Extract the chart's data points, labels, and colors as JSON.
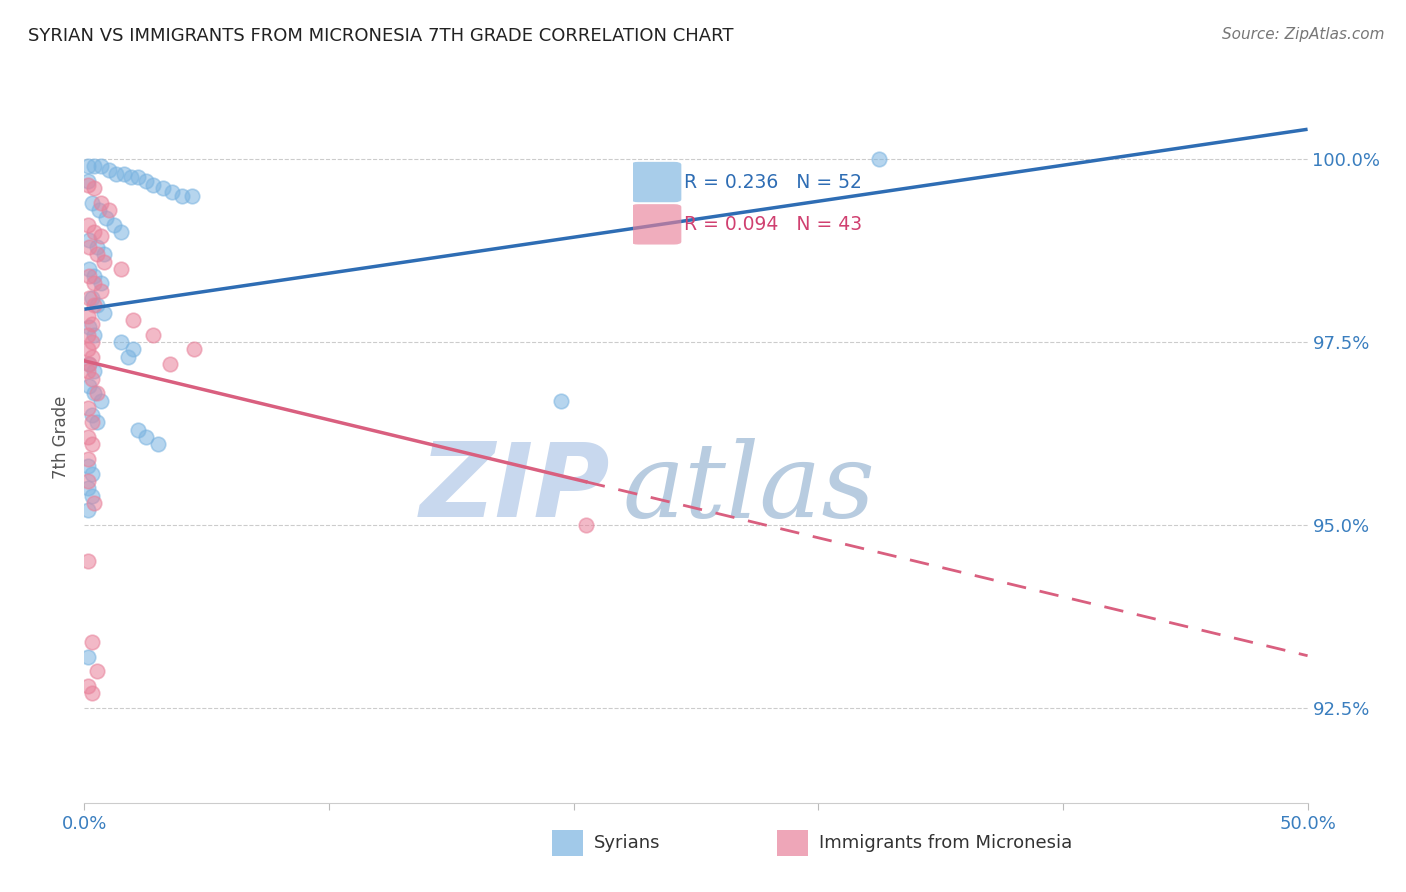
{
  "title": "SYRIAN VS IMMIGRANTS FROM MICRONESIA 7TH GRADE CORRELATION CHART",
  "source": "Source: ZipAtlas.com",
  "ylabel": "7th Grade",
  "ytick_labels": [
    "92.5%",
    "95.0%",
    "97.5%",
    "100.0%"
  ],
  "ytick_values": [
    92.5,
    95.0,
    97.5,
    100.0
  ],
  "xmin": 0.0,
  "xmax": 50.0,
  "ymin": 91.2,
  "ymax": 101.2,
  "legend_blue_r": "R = 0.236",
  "legend_blue_n": "N = 52",
  "legend_pink_r": "R = 0.094",
  "legend_pink_n": "N = 43",
  "blue_label": "Syrians",
  "pink_label": "Immigrants from Micronesia",
  "blue_color": "#7ab3e0",
  "pink_color": "#e8819a",
  "blue_line_color": "#2e6db4",
  "pink_line_color": "#d95f7f",
  "blue_scatter": [
    [
      0.15,
      99.9
    ],
    [
      0.4,
      99.9
    ],
    [
      0.7,
      99.9
    ],
    [
      1.0,
      99.85
    ],
    [
      1.3,
      99.8
    ],
    [
      1.6,
      99.8
    ],
    [
      1.9,
      99.75
    ],
    [
      2.2,
      99.75
    ],
    [
      2.5,
      99.7
    ],
    [
      2.8,
      99.65
    ],
    [
      3.2,
      99.6
    ],
    [
      3.6,
      99.55
    ],
    [
      4.0,
      99.5
    ],
    [
      4.4,
      99.5
    ],
    [
      0.3,
      99.4
    ],
    [
      0.6,
      99.3
    ],
    [
      0.9,
      99.2
    ],
    [
      1.2,
      99.1
    ],
    [
      1.5,
      99.0
    ],
    [
      0.2,
      98.9
    ],
    [
      0.5,
      98.8
    ],
    [
      0.8,
      98.7
    ],
    [
      0.2,
      98.5
    ],
    [
      0.4,
      98.4
    ],
    [
      0.7,
      98.3
    ],
    [
      0.3,
      98.1
    ],
    [
      0.5,
      98.0
    ],
    [
      0.8,
      97.9
    ],
    [
      0.2,
      97.7
    ],
    [
      0.4,
      97.6
    ],
    [
      1.5,
      97.5
    ],
    [
      2.0,
      97.4
    ],
    [
      0.2,
      97.2
    ],
    [
      0.4,
      97.1
    ],
    [
      0.2,
      96.9
    ],
    [
      0.4,
      96.8
    ],
    [
      0.7,
      96.7
    ],
    [
      0.3,
      96.5
    ],
    [
      0.5,
      96.4
    ],
    [
      2.5,
      96.2
    ],
    [
      3.0,
      96.1
    ],
    [
      0.15,
      95.8
    ],
    [
      0.3,
      95.7
    ],
    [
      0.15,
      95.5
    ],
    [
      0.3,
      95.4
    ],
    [
      0.15,
      95.2
    ],
    [
      19.5,
      96.7
    ],
    [
      32.5,
      100.0
    ],
    [
      0.15,
      93.2
    ],
    [
      2.2,
      96.3
    ],
    [
      1.8,
      97.3
    ],
    [
      0.15,
      99.7
    ]
  ],
  "pink_scatter": [
    [
      0.15,
      99.65
    ],
    [
      0.4,
      99.6
    ],
    [
      0.7,
      99.4
    ],
    [
      1.0,
      99.3
    ],
    [
      0.15,
      99.1
    ],
    [
      0.4,
      99.0
    ],
    [
      0.7,
      98.95
    ],
    [
      0.2,
      98.8
    ],
    [
      0.5,
      98.7
    ],
    [
      0.8,
      98.6
    ],
    [
      0.2,
      98.4
    ],
    [
      0.4,
      98.3
    ],
    [
      0.7,
      98.2
    ],
    [
      0.2,
      98.1
    ],
    [
      0.4,
      98.0
    ],
    [
      0.15,
      97.85
    ],
    [
      0.3,
      97.75
    ],
    [
      0.15,
      97.6
    ],
    [
      0.3,
      97.5
    ],
    [
      0.15,
      97.4
    ],
    [
      0.3,
      97.3
    ],
    [
      2.8,
      97.6
    ],
    [
      0.15,
      97.1
    ],
    [
      0.3,
      97.0
    ],
    [
      0.5,
      96.8
    ],
    [
      0.2,
      97.2
    ],
    [
      4.5,
      97.4
    ],
    [
      0.15,
      96.6
    ],
    [
      0.3,
      96.4
    ],
    [
      0.15,
      96.2
    ],
    [
      0.3,
      96.1
    ],
    [
      0.15,
      95.9
    ],
    [
      20.5,
      95.0
    ],
    [
      0.15,
      94.5
    ],
    [
      0.3,
      93.4
    ],
    [
      0.5,
      93.0
    ],
    [
      0.15,
      92.8
    ],
    [
      0.3,
      92.7
    ],
    [
      2.0,
      97.8
    ],
    [
      1.5,
      98.5
    ],
    [
      0.15,
      95.6
    ],
    [
      0.4,
      95.3
    ],
    [
      3.5,
      97.2
    ]
  ],
  "watermark_zip": "ZIP",
  "watermark_atlas": "atlas",
  "watermark_color_zip": "#c8d8ee",
  "watermark_color_atlas": "#b8cce0",
  "pink_dash_start_x": 20.5
}
